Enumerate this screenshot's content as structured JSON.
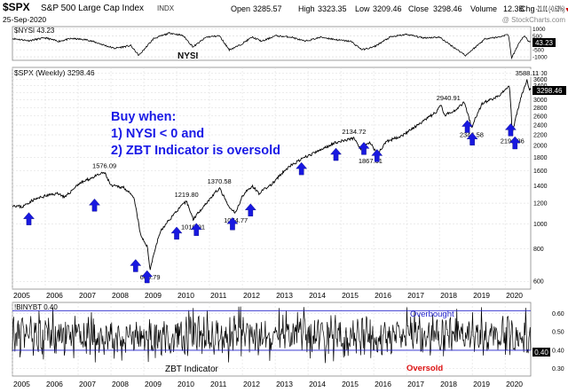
{
  "header": {
    "ticker": "$SPX",
    "name": "S&P 500 Large Cap Index",
    "exchange": "INDX",
    "date": "25-Sep-2020",
    "open_label": "Open",
    "open": "3285.57",
    "high_label": "High",
    "high": "3323.35",
    "low_label": "Low",
    "low": "3209.46",
    "close_label": "Close",
    "close": "3298.46",
    "volume_label": "Volume",
    "volume": "12.3B",
    "chg_label": "Chg",
    "chg": "-21.01 (-0.63%)",
    "chg_marker": "▼",
    "watermark": "@ StockCharts.com"
  },
  "colors": {
    "price_line": "#000000",
    "arrow": "#1818e0",
    "buy_text": "#1a1ae6",
    "overbought": "#2222cc",
    "oversold": "#dd1111",
    "chg_red": "#cc0000",
    "grid": "#d8d8d8"
  },
  "icons": {
    "buy_signal": "blue-up-arrow-icon",
    "down_marker": "red-down-triangle-icon"
  },
  "annotation": {
    "line1": "Buy when:",
    "line2": "1) NYSI < 0 and",
    "line3": "2) ZBT Indicator is oversold"
  },
  "chart_data": [
    {
      "type": "line",
      "panel": "NYSI",
      "legend": "$NYSI 43.23",
      "label": "NYSI",
      "last_value_badge": "43.23",
      "y_tick_labels": [
        "1000",
        "500",
        "0",
        "-500",
        "-1000"
      ],
      "ylim": [
        -1250,
        1150
      ],
      "x": [
        2005,
        2005.5,
        2006,
        2006.4,
        2006.8,
        2007.3,
        2007.7,
        2008.1,
        2008.6,
        2008.85,
        2009.3,
        2009.8,
        2010.2,
        2010.5,
        2010.9,
        2011.3,
        2011.6,
        2011.9,
        2012.3,
        2012.6,
        2013.0,
        2013.5,
        2013.9,
        2014.4,
        2014.9,
        2015.3,
        2015.65,
        2016.0,
        2016.5,
        2017.0,
        2017.5,
        2018.0,
        2018.3,
        2018.8,
        2018.95,
        2019.4,
        2019.8,
        2020.1,
        2020.2,
        2020.45,
        2020.6,
        2020.73
      ],
      "values": [
        300,
        150,
        350,
        100,
        300,
        200,
        -100,
        -400,
        -200,
        -900,
        300,
        700,
        500,
        -300,
        400,
        500,
        -500,
        -200,
        400,
        100,
        500,
        400,
        100,
        400,
        200,
        100,
        -500,
        -300,
        400,
        600,
        350,
        400,
        -100,
        -900,
        -600,
        300,
        400,
        600,
        -1100,
        100,
        500,
        43
      ]
    },
    {
      "type": "line",
      "panel": "SPX (Weekly)",
      "legend": "$SPX (Weekly) 3298.46",
      "scale": "log",
      "x_tick_labels": [
        "2005",
        "2006",
        "2007",
        "2008",
        "2009",
        "2010",
        "2011",
        "2012",
        "2013",
        "2014",
        "2015",
        "2016",
        "2017",
        "2018",
        "2019",
        "2020"
      ],
      "y_tick_labels": [
        "3800",
        "3600",
        "3400",
        "3200",
        "3000",
        "2800",
        "2600",
        "2400",
        "2200",
        "2000",
        "1800",
        "1600",
        "1400",
        "1200",
        "1000",
        "800",
        "600"
      ],
      "ylim": [
        560,
        4000
      ],
      "last_value_badge": "3298.46",
      "x": [
        2005.0,
        2005.3,
        2005.6,
        2006.0,
        2006.4,
        2006.6,
        2007.0,
        2007.4,
        2007.8,
        2008.0,
        2008.4,
        2008.7,
        2008.9,
        2009.1,
        2009.19,
        2009.5,
        2010.0,
        2010.3,
        2010.5,
        2010.9,
        2011.3,
        2011.6,
        2011.8,
        2012.0,
        2012.3,
        2012.5,
        2012.9,
        2013.4,
        2013.9,
        2014.3,
        2014.8,
        2015.4,
        2015.6,
        2015.9,
        2016.1,
        2016.4,
        2016.9,
        2017.4,
        2017.9,
        2018.05,
        2018.15,
        2018.5,
        2018.75,
        2018.98,
        2019.3,
        2019.8,
        2020.13,
        2020.22,
        2020.5,
        2020.67,
        2020.73
      ],
      "values": [
        1180,
        1160,
        1230,
        1280,
        1310,
        1260,
        1420,
        1500,
        1576,
        1400,
        1380,
        1250,
        900,
        820,
        667,
        930,
        1120,
        1219,
        1040,
        1200,
        1370,
        1150,
        1100,
        1280,
        1400,
        1310,
        1420,
        1650,
        1800,
        1900,
        2050,
        2134,
        1950,
        2050,
        1850,
        2070,
        2200,
        2420,
        2690,
        2870,
        2610,
        2750,
        2940,
        2350,
        2900,
        3100,
        3390,
        2230,
        3100,
        3588,
        3298
      ],
      "annotations": [
        {
          "x": 2007.8,
          "y": 1576,
          "label": "1576.09",
          "place": "above"
        },
        {
          "x": 2010.3,
          "y": 1219,
          "label": "1219.80",
          "place": "above"
        },
        {
          "x": 2011.3,
          "y": 1370,
          "label": "1370.58",
          "place": "above"
        },
        {
          "x": 2015.4,
          "y": 2134,
          "label": "2134.72",
          "place": "above"
        },
        {
          "x": 2018.75,
          "y": 2940,
          "label": "2940.91",
          "place": "left"
        },
        {
          "x": 2020.67,
          "y": 3588,
          "label": "3588.11",
          "place": "above"
        },
        {
          "x": 2009.19,
          "y": 667,
          "label": "666.79",
          "place": "below"
        },
        {
          "x": 2010.5,
          "y": 1040,
          "label": "1010.91",
          "place": "below"
        },
        {
          "x": 2011.8,
          "y": 1100,
          "label": "1074.77",
          "place": "below"
        },
        {
          "x": 2015.9,
          "y": 1867,
          "label": "1867.01",
          "place": "below"
        },
        {
          "x": 2018.98,
          "y": 2350,
          "label": "2346.58",
          "place": "below"
        },
        {
          "x": 2020.22,
          "y": 2230,
          "label": "2191.86",
          "place": "below"
        }
      ],
      "buy_arrows": [
        {
          "x": 2005.5,
          "y": 1045
        },
        {
          "x": 2007.5,
          "y": 1180
        },
        {
          "x": 2008.75,
          "y": 690
        },
        {
          "x": 2009.1,
          "y": 625
        },
        {
          "x": 2010.0,
          "y": 920
        },
        {
          "x": 2010.6,
          "y": 950
        },
        {
          "x": 2011.7,
          "y": 1000
        },
        {
          "x": 2012.25,
          "y": 1130
        },
        {
          "x": 2013.8,
          "y": 1630
        },
        {
          "x": 2014.85,
          "y": 1850
        },
        {
          "x": 2015.7,
          "y": 1950
        },
        {
          "x": 2016.1,
          "y": 1830
        },
        {
          "x": 2018.85,
          "y": 2370
        },
        {
          "x": 2019.0,
          "y": 2120
        },
        {
          "x": 2020.17,
          "y": 2300
        },
        {
          "x": 2020.3,
          "y": 2050
        }
      ]
    },
    {
      "type": "line",
      "panel": "ZBT Indicator",
      "legend": "!BINYBT 0.40",
      "label": "ZBT Indicator",
      "y_tick_labels": [
        "0.60",
        "0.50",
        "0.40",
        "0.30"
      ],
      "ylim": [
        0.26,
        0.66
      ],
      "last_value_badge": "0.40",
      "overbought_level": 0.615,
      "oversold_level": 0.4,
      "overbought_label": "Overbought",
      "oversold_label": "Oversold",
      "x_tick_labels": [
        "2005",
        "2006",
        "2007",
        "2008",
        "2009",
        "2010",
        "2011",
        "2012",
        "2013",
        "2014",
        "2015",
        "2016",
        "2017",
        "2018",
        "2019",
        "2020"
      ]
    }
  ]
}
